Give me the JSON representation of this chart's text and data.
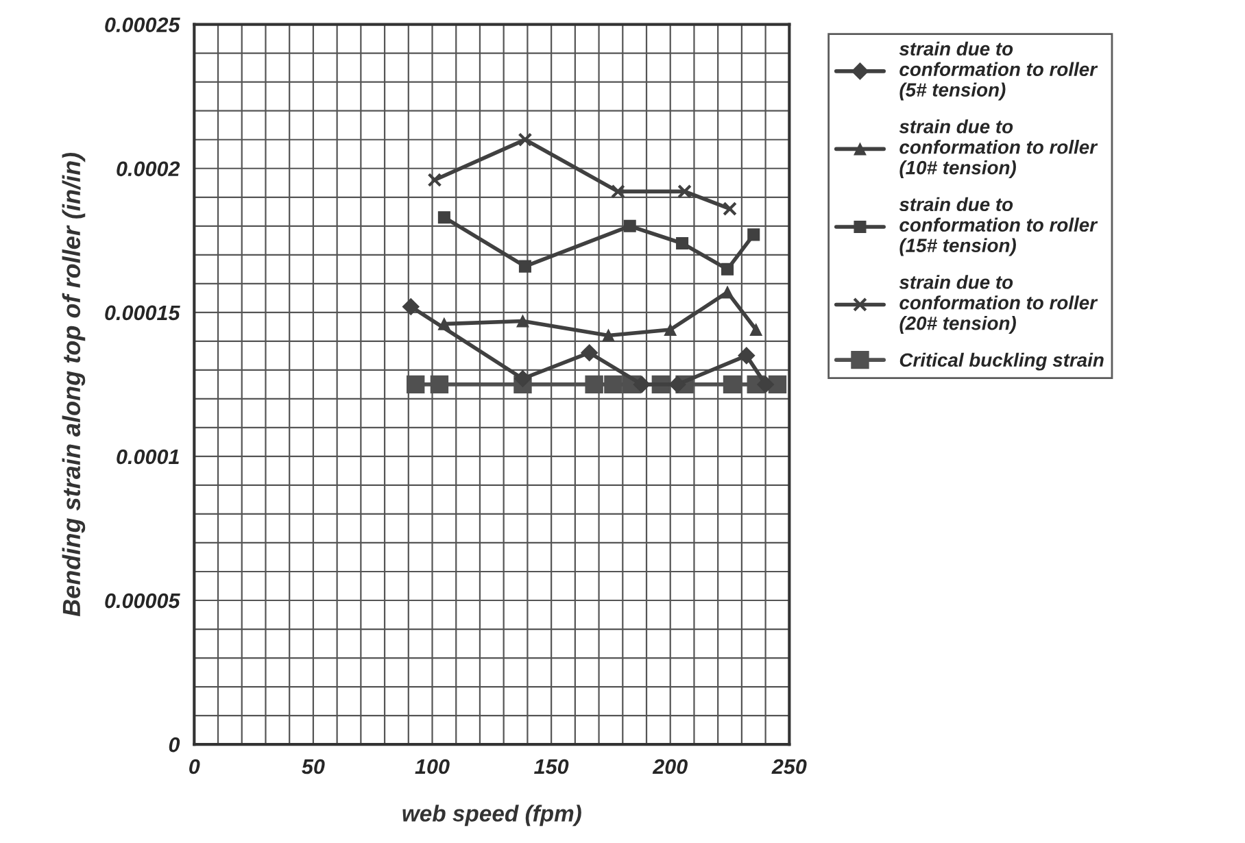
{
  "chart_data": {
    "type": "line",
    "xlabel": "web speed (fpm)",
    "ylabel": "Bending strain along top of roller (in/in)",
    "xlim": [
      0,
      250
    ],
    "xticks": [
      0,
      50,
      100,
      150,
      200,
      250
    ],
    "ylim": [
      0,
      0.00025
    ],
    "yticks": [
      0,
      {
        "value": 5e-05,
        "label": "0.00005"
      },
      0.0001,
      0.00015,
      0.0002,
      0.00025
    ],
    "grid": true,
    "legend": "top right",
    "line_style": "solid",
    "series": [
      {
        "name": "strain due to conformation to roller (5# tension)",
        "color": "#404040",
        "marker": "diamond",
        "x": [
          91,
          138,
          166,
          188,
          203,
          232,
          240
        ],
        "values": [
          0.000152,
          0.000127,
          0.000136,
          0.000125,
          0.000125,
          0.000135,
          0.000125
        ]
      },
      {
        "name": "strain due to conformation to roller (10# tension)",
        "color": "#404040",
        "marker": "triangle",
        "x": [
          105,
          138,
          174,
          200,
          224,
          236
        ],
        "values": [
          0.000146,
          0.000147,
          0.000142,
          0.000144,
          0.000157,
          0.000144
        ]
      },
      {
        "name": "strain due to conformation to roller (15# tension)",
        "color": "#404040",
        "marker": "square",
        "x": [
          105,
          139,
          183,
          205,
          224,
          235
        ],
        "values": [
          0.000183,
          0.000166,
          0.00018,
          0.000174,
          0.000165,
          0.000177
        ]
      },
      {
        "name": "strain due to conformation to roller (20# tension)",
        "color": "#404040",
        "marker": "cross",
        "x": [
          101,
          139,
          178,
          206,
          225
        ],
        "values": [
          0.000196,
          0.00021,
          0.000192,
          0.000192,
          0.000186
        ]
      },
      {
        "name": "Critical buckling strain",
        "color": "#505050",
        "marker": "square",
        "x": [
          93,
          103,
          138,
          168,
          176,
          184,
          196,
          206,
          226,
          236,
          245
        ],
        "values": [
          0.000125,
          0.000125,
          0.000125,
          0.000125,
          0.000125,
          0.000125,
          0.000125,
          0.000125,
          0.000125,
          0.000125,
          0.000125
        ]
      }
    ]
  }
}
